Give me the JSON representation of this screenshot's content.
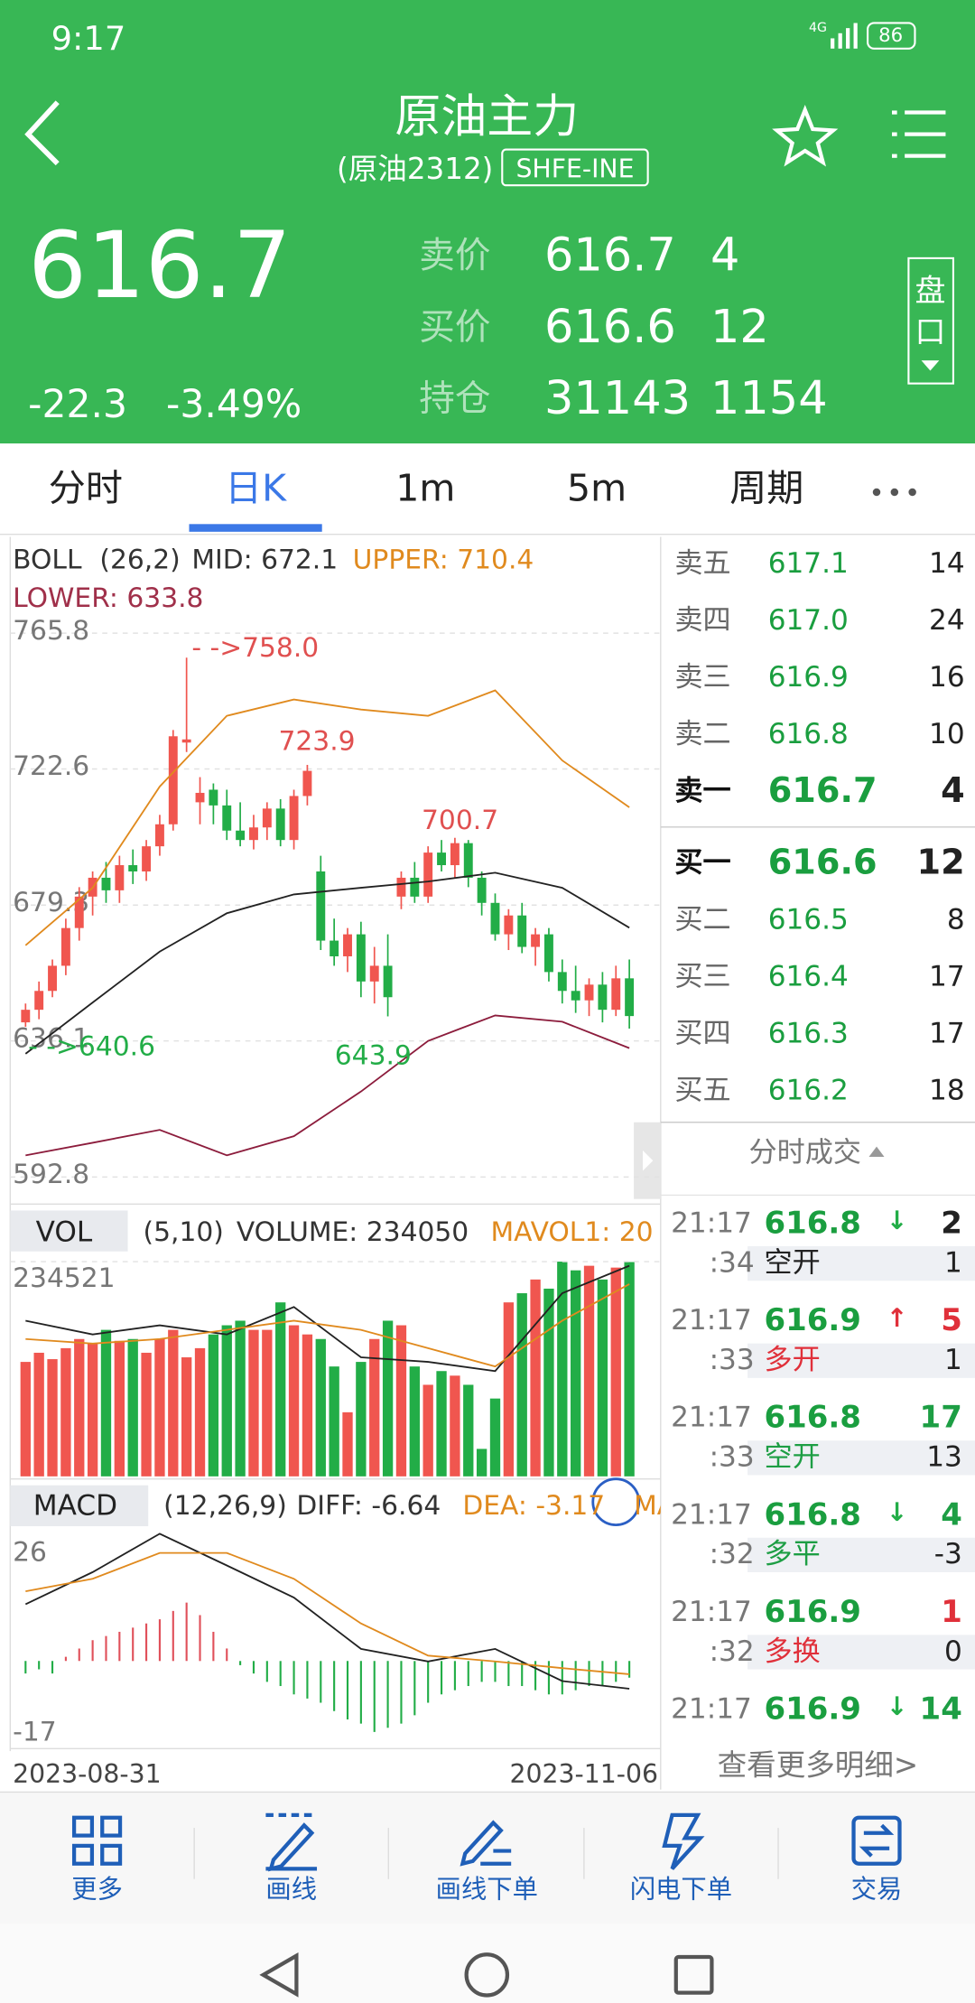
{
  "status_bar": {
    "time": "9:17",
    "network": "4G",
    "battery": "86"
  },
  "header": {
    "title": "原油主力",
    "subtitle": "(原油2312)",
    "exchange": "SHFE-INE"
  },
  "quote": {
    "last": "616.7",
    "change": "-22.3",
    "change_pct": "-3.49%",
    "rows": [
      {
        "label": "卖价",
        "price": "616.7",
        "qty": "4"
      },
      {
        "label": "买价",
        "price": "616.6",
        "qty": "12"
      },
      {
        "label": "持仓",
        "price": "31143",
        "qty": "1154"
      }
    ],
    "depth_button": [
      "盘",
      "口"
    ]
  },
  "tabs": {
    "items": [
      "分时",
      "日K",
      "1m",
      "5m",
      "周期"
    ],
    "selected": 1
  },
  "kline": {
    "indicator": "BOLL",
    "params": "(26,2)",
    "mid": "MID: 672.1",
    "upper": "UPPER: 710.4",
    "lower": "LOWER: 633.8",
    "ylim": [
      585,
      770
    ],
    "yticks": [
      765.8,
      722.6,
      679.3,
      636.1,
      592.8
    ],
    "up_color": "#f0564f",
    "down_color": "#22ad47",
    "candles": [
      {
        "o": 642,
        "h": 648,
        "l": 640.6,
        "c": 646
      },
      {
        "o": 646,
        "h": 655,
        "l": 643,
        "c": 652
      },
      {
        "o": 652,
        "h": 662,
        "l": 650,
        "c": 660
      },
      {
        "o": 660,
        "h": 675,
        "l": 657,
        "c": 672
      },
      {
        "o": 672,
        "h": 685,
        "l": 668,
        "c": 682
      },
      {
        "o": 682,
        "h": 690,
        "l": 676,
        "c": 688
      },
      {
        "o": 688,
        "h": 693,
        "l": 680,
        "c": 684
      },
      {
        "o": 684,
        "h": 695,
        "l": 680,
        "c": 692
      },
      {
        "o": 692,
        "h": 697,
        "l": 686,
        "c": 690
      },
      {
        "o": 690,
        "h": 700,
        "l": 687,
        "c": 698
      },
      {
        "o": 698,
        "h": 708,
        "l": 695,
        "c": 705
      },
      {
        "o": 705,
        "h": 735,
        "l": 703,
        "c": 733
      },
      {
        "o": 731,
        "h": 758,
        "l": 728,
        "c": 732
      },
      {
        "o": 712,
        "h": 720,
        "l": 705,
        "c": 715
      },
      {
        "o": 716,
        "h": 718,
        "l": 705,
        "c": 711
      },
      {
        "o": 711,
        "h": 716,
        "l": 700,
        "c": 703
      },
      {
        "o": 703,
        "h": 712,
        "l": 698,
        "c": 700
      },
      {
        "o": 700,
        "h": 708,
        "l": 697,
        "c": 704
      },
      {
        "o": 704,
        "h": 712,
        "l": 700,
        "c": 710
      },
      {
        "o": 710,
        "h": 713,
        "l": 698,
        "c": 700
      },
      {
        "o": 700,
        "h": 716,
        "l": 697,
        "c": 714
      },
      {
        "o": 714,
        "h": 723.9,
        "l": 711,
        "c": 722
      },
      {
        "o": 690,
        "h": 695,
        "l": 665,
        "c": 668
      },
      {
        "o": 668,
        "h": 675,
        "l": 660,
        "c": 663
      },
      {
        "o": 663,
        "h": 672,
        "l": 658,
        "c": 670
      },
      {
        "o": 670,
        "h": 674,
        "l": 650,
        "c": 655
      },
      {
        "o": 655,
        "h": 666,
        "l": 648,
        "c": 660
      },
      {
        "o": 660,
        "h": 670,
        "l": 643.9,
        "c": 650
      },
      {
        "o": 682,
        "h": 690,
        "l": 678,
        "c": 688
      },
      {
        "o": 688,
        "h": 693,
        "l": 680,
        "c": 682
      },
      {
        "o": 682,
        "h": 698,
        "l": 680,
        "c": 696
      },
      {
        "o": 696,
        "h": 700,
        "l": 690,
        "c": 692
      },
      {
        "o": 692,
        "h": 700.7,
        "l": 688,
        "c": 699
      },
      {
        "o": 699,
        "h": 700,
        "l": 685,
        "c": 688
      },
      {
        "o": 688,
        "h": 690,
        "l": 676,
        "c": 680
      },
      {
        "o": 680,
        "h": 683,
        "l": 668,
        "c": 670
      },
      {
        "o": 670,
        "h": 678,
        "l": 665,
        "c": 676
      },
      {
        "o": 676,
        "h": 680,
        "l": 664,
        "c": 666
      },
      {
        "o": 666,
        "h": 672,
        "l": 660,
        "c": 670
      },
      {
        "o": 670,
        "h": 672,
        "l": 655,
        "c": 658
      },
      {
        "o": 658,
        "h": 662,
        "l": 648,
        "c": 652
      },
      {
        "o": 652,
        "h": 660,
        "l": 645,
        "c": 649
      },
      {
        "o": 649,
        "h": 656,
        "l": 644,
        "c": 654
      },
      {
        "o": 654,
        "h": 658,
        "l": 642,
        "c": 646
      },
      {
        "o": 646,
        "h": 660,
        "l": 644,
        "c": 656
      },
      {
        "o": 656,
        "h": 662,
        "l": 640,
        "c": 644
      }
    ],
    "boll": {
      "x": [
        0,
        5,
        10,
        15,
        20,
        25,
        30,
        35,
        40,
        45
      ],
      "lines": [
        {
          "color": "#e08a1e",
          "values": [
            666.5,
            684.8,
            717,
            739.5,
            744.7,
            741.5,
            739.5,
            747.6,
            725.3,
            710.4
          ]
        },
        {
          "color": "#222222",
          "values": [
            632,
            648.3,
            664.5,
            676.7,
            682.7,
            684.8,
            686.8,
            689.6,
            684.8,
            672.1
          ]
        },
        {
          "color": "#8c1c3c",
          "values": [
            599.7,
            603.7,
            607.8,
            599.7,
            605.8,
            620,
            636.1,
            644.2,
            642.2,
            633.8
          ]
        }
      ]
    },
    "annotations": [
      "- ->758.0",
      "723.9",
      "700.7",
      "- ->640.6",
      "643.9"
    ]
  },
  "volume": {
    "indicator": "VOL",
    "params": "(5,10)",
    "volume": "VOLUME: 234050",
    "mavol": "MAVOL1: 20",
    "ylim": [
      0,
      234521
    ],
    "yticks": [
      234521
    ],
    "values": [
      125000,
      135000,
      128000,
      140000,
      150000,
      145000,
      160000,
      148000,
      150000,
      135000,
      150000,
      160000,
      130000,
      140000,
      155000,
      165000,
      170000,
      160000,
      160000,
      190000,
      165000,
      155000,
      150000,
      120000,
      70000,
      125000,
      150000,
      170000,
      165000,
      120000,
      100000,
      115000,
      110000,
      100000,
      30000,
      85000,
      190000,
      200000,
      215000,
      205000,
      234521,
      225000,
      230000,
      215000,
      228000,
      234050
    ],
    "ma": {
      "x": [
        0,
        5,
        10,
        15,
        20,
        25,
        30,
        35,
        40,
        45
      ],
      "lines": [
        {
          "color": "#222222",
          "values": [
            170000,
            155000,
            165000,
            155000,
            185000,
            130000,
            125000,
            115000,
            200000,
            230000
          ]
        },
        {
          "color": "#e08a1e",
          "values": [
            150000,
            145000,
            150000,
            160000,
            170000,
            160000,
            140000,
            120000,
            170000,
            210000
          ]
        }
      ]
    }
  },
  "macd": {
    "indicator": "MACD",
    "params": "(12,26,9)",
    "diff": "DIFF: -6.64",
    "dea": "DEA: -3.17",
    "more": "MA",
    "ylim": [
      -21,
      32
    ],
    "yticks": [
      26,
      -17
    ],
    "up_color": "#e0505a",
    "down_color": "#22ad47",
    "hist": [
      -3,
      -2,
      -3,
      1,
      3,
      5,
      6,
      7,
      8,
      9,
      10,
      12,
      14,
      11,
      7,
      3,
      -1,
      -3,
      -5,
      -6,
      -8,
      -9,
      -10,
      -12,
      -14,
      -15,
      -17,
      -16,
      -15,
      -13,
      -10,
      -8,
      -7,
      -6,
      -5,
      -5,
      -6,
      -6,
      -7,
      -8,
      -8,
      -7,
      -6,
      -6,
      -5,
      -4
    ],
    "lines": {
      "x": [
        0,
        5,
        10,
        15,
        20,
        25,
        30,
        35,
        40,
        45
      ],
      "lines": [
        {
          "color": "#222222",
          "values": [
            13.6,
            21.3,
            30.5,
            22.9,
            15.2,
            2.9,
            -0.1,
            2.9,
            -4.8,
            -6.64
          ]
        },
        {
          "color": "#e08a1e",
          "values": [
            16.7,
            19.7,
            25.9,
            25.9,
            19.7,
            9,
            1.3,
            -0.1,
            -1.7,
            -3.17
          ]
        }
      ]
    }
  },
  "dates": [
    "2023-08-31",
    "2023-11-06"
  ],
  "order_book": {
    "asks": [
      {
        "label": "卖五",
        "price": "617.1",
        "qty": "14"
      },
      {
        "label": "卖四",
        "price": "617.0",
        "qty": "24"
      },
      {
        "label": "卖三",
        "price": "616.9",
        "qty": "16"
      },
      {
        "label": "卖二",
        "price": "616.8",
        "qty": "10"
      },
      {
        "label": "卖一",
        "price": "616.7",
        "qty": "4"
      }
    ],
    "bids": [
      {
        "label": "买一",
        "price": "616.6",
        "qty": "12"
      },
      {
        "label": "买二",
        "price": "616.5",
        "qty": "8"
      },
      {
        "label": "买三",
        "price": "616.4",
        "qty": "17"
      },
      {
        "label": "买四",
        "price": "616.3",
        "qty": "17"
      },
      {
        "label": "买五",
        "price": "616.2",
        "qty": "18"
      }
    ]
  },
  "trades": {
    "title": "分时成交",
    "more": "查看更多明细>",
    "items": [
      {
        "time": "21:17",
        "sec": ":34",
        "price": "616.8",
        "dir": "↓",
        "dir_color": "#22ad47",
        "vol": "2",
        "vol_color": "#222222",
        "kind": "空开",
        "kind_color": "#222222",
        "qty": "1"
      },
      {
        "time": "21:17",
        "sec": ":33",
        "price": "616.9",
        "dir": "↑",
        "dir_color": "#e0303a",
        "vol": "5",
        "vol_color": "#e0303a",
        "kind": "多开",
        "kind_color": "#e0303a",
        "qty": "1"
      },
      {
        "time": "21:17",
        "sec": ":33",
        "price": "616.8",
        "vol": "17",
        "vol_color": "#1d9e44",
        "kind": "空开",
        "kind_color": "#1d9e44",
        "qty": "13"
      },
      {
        "time": "21:17",
        "sec": ":32",
        "price": "616.8",
        "dir": "↓",
        "dir_color": "#22ad47",
        "vol": "4",
        "vol_color": "#1d9e44",
        "kind": "多平",
        "kind_color": "#1d9e44",
        "qty": "-3"
      },
      {
        "time": "21:17",
        "sec": ":32",
        "price": "616.9",
        "vol": "1",
        "vol_color": "#e0303a",
        "kind": "多换",
        "kind_color": "#e0303a",
        "qty": "0"
      },
      {
        "time": "21:17",
        "price": "616.9",
        "dir": "↓",
        "dir_color": "#22ad47",
        "vol": "14",
        "vol_color": "#1d9e44"
      }
    ]
  },
  "bottom_nav": [
    "更多",
    "画线",
    "画线下单",
    "闪电下单",
    "交易"
  ]
}
